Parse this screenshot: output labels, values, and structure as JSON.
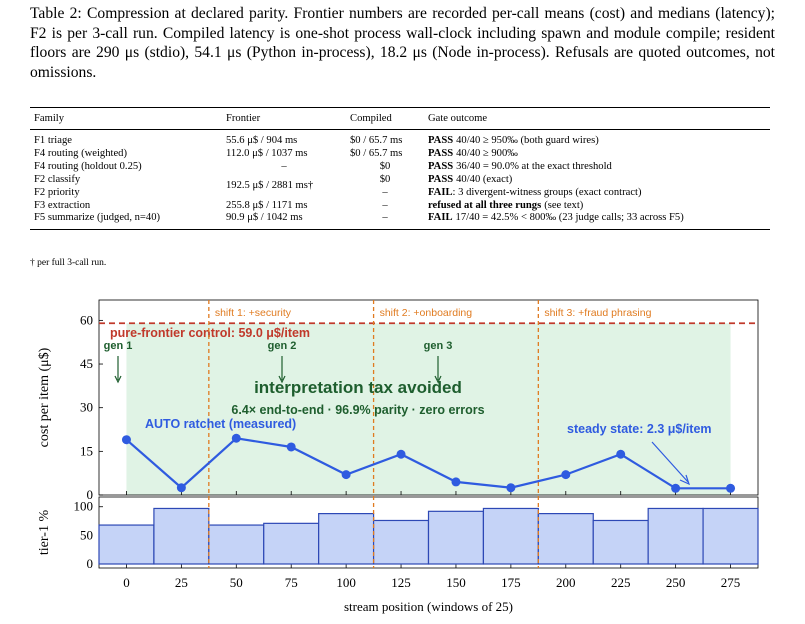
{
  "caption": "Table 2: Compression at declared parity. Frontier numbers are recorded per-call means (cost) and medians (latency); F2 is per 3-call run. Compiled latency is one-shot process wall-clock including spawn and module compile; resident floors are 290 μs (stdio), 54.1 μs (Python in-process), 18.2 μs (Node in-process). Refusals are quoted outcomes, not omissions.",
  "table": {
    "headers": [
      "Family",
      "Frontier",
      "Compiled",
      "Gate outcome"
    ],
    "rows": [
      [
        "F1 triage",
        "55.6 μ$ / 904 ms",
        "$0 / 65.7 ms",
        {
          "status": "PASS",
          "detail": "40/40 ≥ 950‰ (both guard wires)"
        }
      ],
      [
        "F4 routing (weighted)",
        "112.0 μ$ / 1037 ms",
        "$0 / 65.7 ms",
        {
          "status": "PASS",
          "detail": "40/40 ≥ 900‰"
        }
      ],
      [
        "F4 routing (holdout 0.25)",
        "–",
        "$0",
        {
          "status": "PASS",
          "detail": "36/40 = 90.0% at the exact threshold"
        }
      ],
      [
        "F2 classify",
        "192.5 μ$ / 2881 ms†",
        "$0",
        {
          "status": "PASS",
          "detail": "40/40 (exact)"
        }
      ],
      [
        "F2 priority",
        null,
        "–",
        {
          "status": "FAIL",
          "detail": ": 3 divergent-witness groups (exact contract)"
        }
      ],
      [
        "F3 extraction",
        "255.8 μ$ / 1171 ms",
        "–",
        {
          "status": "refused at all three rungs",
          "detail": "(see text)"
        }
      ],
      [
        "F5 summarize (judged, n=40)",
        "90.9 μ$ / 1042 ms",
        "–",
        {
          "status": "FAIL",
          "detail": "17/40 = 42.5% < 800‰ (23 judge calls; 33 across F5)"
        }
      ]
    ],
    "footnote": "† per full 3-call run."
  },
  "chart_data": [
    {
      "type": "line",
      "x": [
        0,
        25,
        50,
        75,
        100,
        125,
        150,
        175,
        200,
        225,
        250,
        275
      ],
      "xlim": [
        -12.5,
        287.5
      ],
      "series": [
        {
          "name": "AUTO ratchet (measured)",
          "color": "#2f5be0",
          "values": [
            19,
            2.5,
            19.5,
            16.5,
            7,
            14,
            4.5,
            2.5,
            7,
            14,
            2.3,
            2.3
          ]
        }
      ],
      "ylim": [
        0,
        67
      ],
      "yticks": [
        0,
        15,
        30,
        45,
        60
      ],
      "ylabel": "cost per item (μ$)",
      "control": {
        "value": 59.0,
        "label": "pure-frontier control: 59.0 μ$/item",
        "color": "#c0392b"
      },
      "shifts": [
        {
          "x": 37.5,
          "label": "shift 1: +security"
        },
        {
          "x": 112.5,
          "label": "shift 2: +onboarding"
        },
        {
          "x": 187.5,
          "label": "shift 3: +fraud phrasing"
        }
      ],
      "shift_color": "#e07b20",
      "markers": [
        "gen 1",
        "gen 2",
        "gen 3"
      ],
      "headline": "interpretation tax avoided",
      "subline": "6.4× end-to-end · 96.9% parity · zero errors",
      "steady_label": "steady state: 2.3 μ$/item"
    },
    {
      "type": "bar",
      "x": [
        0,
        25,
        50,
        75,
        100,
        125,
        150,
        175,
        200,
        225,
        250,
        275
      ],
      "xlim": [
        -12.5,
        287.5
      ],
      "values": [
        68,
        97,
        68,
        71,
        88,
        76,
        92,
        97,
        88,
        76,
        97,
        97
      ],
      "color": "#c5d3f7",
      "ylim": [
        -7,
        117
      ],
      "yticks": [
        0,
        50,
        100
      ],
      "xticks": [
        0,
        25,
        50,
        75,
        100,
        125,
        150,
        175,
        200,
        225,
        250,
        275
      ],
      "ylabel": "tier-1 %",
      "xlabel": "stream position (windows of 25)"
    }
  ]
}
